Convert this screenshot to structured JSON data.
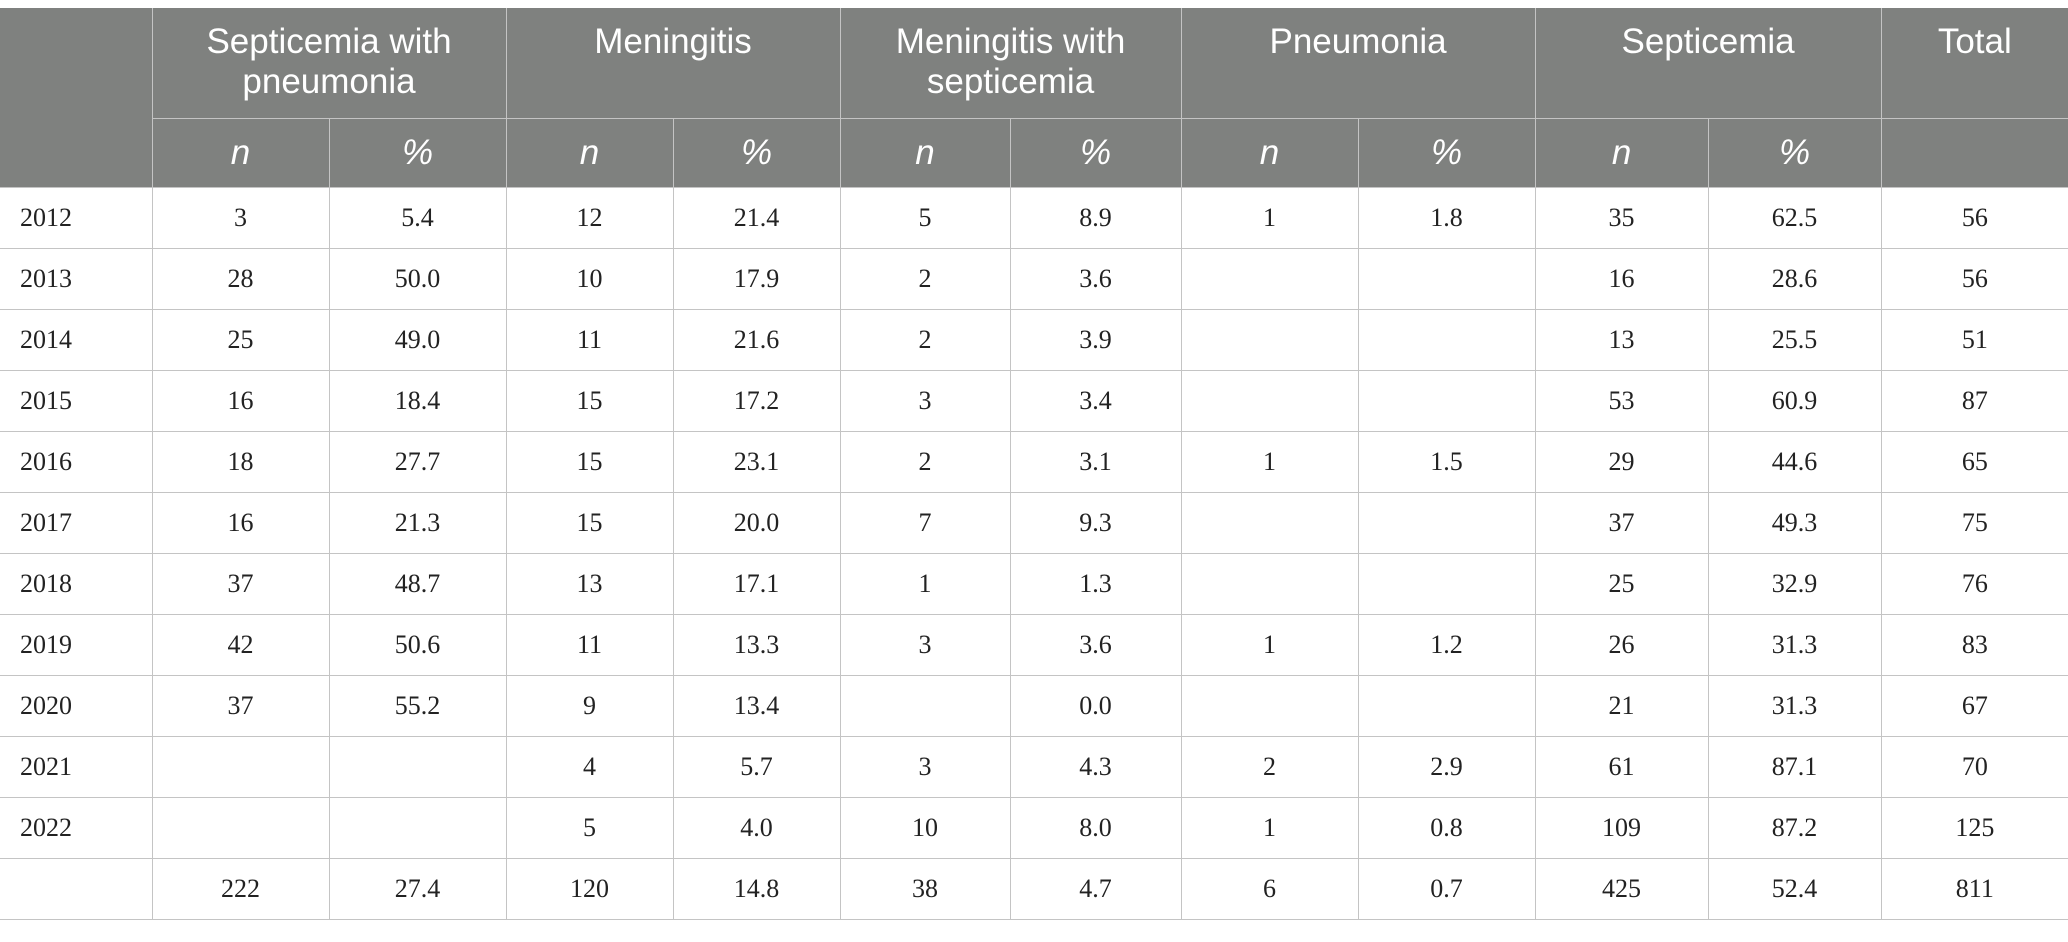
{
  "table": {
    "header": {
      "corner": "",
      "groups": [
        "Septicemia with pneumonia",
        "Meningitis",
        "Meningitis with septicemia",
        "Pneumonia",
        "Septicemia"
      ],
      "total": "Total",
      "n_label": "n",
      "pct_label": "%"
    },
    "rows": [
      {
        "year": "2012",
        "cells": [
          "3",
          "5.4",
          "12",
          "21.4",
          "5",
          "8.9",
          "1",
          "1.8",
          "35",
          "62.5",
          "56"
        ]
      },
      {
        "year": "2013",
        "cells": [
          "28",
          "50.0",
          "10",
          "17.9",
          "2",
          "3.6",
          "",
          "",
          "16",
          "28.6",
          "56"
        ]
      },
      {
        "year": "2014",
        "cells": [
          "25",
          "49.0",
          "11",
          "21.6",
          "2",
          "3.9",
          "",
          "",
          "13",
          "25.5",
          "51"
        ]
      },
      {
        "year": "2015",
        "cells": [
          "16",
          "18.4",
          "15",
          "17.2",
          "3",
          "3.4",
          "",
          "",
          "53",
          "60.9",
          "87"
        ]
      },
      {
        "year": "2016",
        "cells": [
          "18",
          "27.7",
          "15",
          "23.1",
          "2",
          "3.1",
          "1",
          "1.5",
          "29",
          "44.6",
          "65"
        ]
      },
      {
        "year": "2017",
        "cells": [
          "16",
          "21.3",
          "15",
          "20.0",
          "7",
          "9.3",
          "",
          "",
          "37",
          "49.3",
          "75"
        ]
      },
      {
        "year": "2018",
        "cells": [
          "37",
          "48.7",
          "13",
          "17.1",
          "1",
          "1.3",
          "",
          "",
          "25",
          "32.9",
          "76"
        ]
      },
      {
        "year": "2019",
        "cells": [
          "42",
          "50.6",
          "11",
          "13.3",
          "3",
          "3.6",
          "1",
          "1.2",
          "26",
          "31.3",
          "83"
        ]
      },
      {
        "year": "2020",
        "cells": [
          "37",
          "55.2",
          "9",
          "13.4",
          "",
          "0.0",
          "",
          "",
          "21",
          "31.3",
          "67"
        ]
      },
      {
        "year": "2021",
        "cells": [
          "",
          "",
          "4",
          "5.7",
          "3",
          "4.3",
          "2",
          "2.9",
          "61",
          "87.1",
          "70"
        ]
      },
      {
        "year": "2022",
        "cells": [
          "",
          "",
          "5",
          "4.0",
          "10",
          "8.0",
          "1",
          "0.8",
          "109",
          "87.2",
          "125"
        ]
      },
      {
        "year": "",
        "cells": [
          "222",
          "27.4",
          "120",
          "14.8",
          "38",
          "4.7",
          "6",
          "0.7",
          "425",
          "52.4",
          "811"
        ]
      }
    ]
  }
}
